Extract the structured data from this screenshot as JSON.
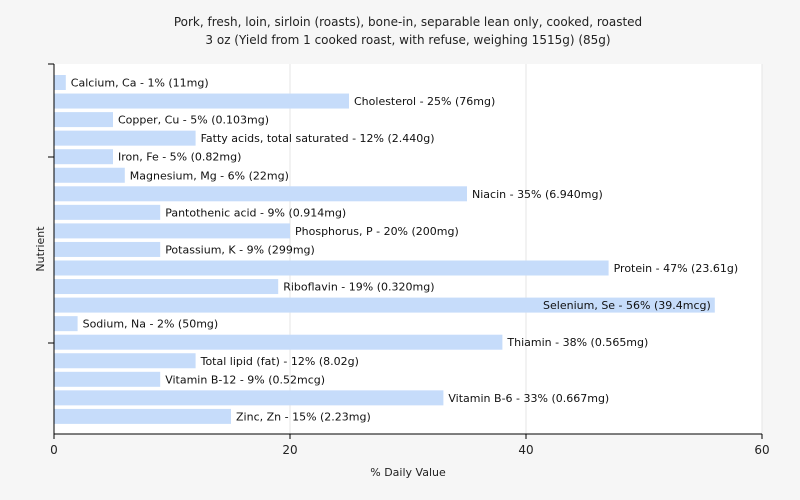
{
  "chart_data": {
    "type": "bar",
    "orientation": "horizontal",
    "title": "Pork, fresh, loin, sirloin (roasts), bone-in, separable lean only, cooked, roasted",
    "subtitle": "3 oz (Yield from 1 cooked roast, with refuse, weighing 1515g) (85g)",
    "xlabel": "% Daily Value",
    "ylabel": "Nutrient",
    "xlim": [
      0,
      60
    ],
    "xticks": [
      "0",
      "20",
      "40",
      "60"
    ],
    "grid": true,
    "bar_color": "#c6dcfa",
    "categories": [
      "Calcium, Ca",
      "Cholesterol",
      "Copper, Cu",
      "Fatty acids, total saturated",
      "Iron, Fe",
      "Magnesium, Mg",
      "Niacin",
      "Pantothenic acid",
      "Phosphorus, P",
      "Potassium, K",
      "Protein",
      "Riboflavin",
      "Selenium, Se",
      "Sodium, Na",
      "Thiamin",
      "Total lipid (fat)",
      "Vitamin B-12",
      "Vitamin B-6",
      "Zinc, Zn"
    ],
    "values": [
      1,
      25,
      5,
      12,
      5,
      6,
      35,
      9,
      20,
      9,
      47,
      19,
      56,
      2,
      38,
      12,
      9,
      33,
      15
    ],
    "labels": [
      "Calcium, Ca - 1% (11mg)",
      "Cholesterol - 25% (76mg)",
      "Copper, Cu - 5% (0.103mg)",
      "Fatty acids, total saturated - 12% (2.440g)",
      "Iron, Fe - 5% (0.82mg)",
      "Magnesium, Mg - 6% (22mg)",
      "Niacin - 35% (6.940mg)",
      "Pantothenic acid - 9% (0.914mg)",
      "Phosphorus, P - 20% (200mg)",
      "Potassium, K - 9% (299mg)",
      "Protein - 47% (23.61g)",
      "Riboflavin - 19% (0.320mg)",
      "Selenium, Se - 56% (39.4mcg)",
      "Sodium, Na - 2% (50mg)",
      "Thiamin - 38% (0.565mg)",
      "Total lipid (fat) - 12% (8.02g)",
      "Vitamin B-12 - 9% (0.52mcg)",
      "Vitamin B-6 - 33% (0.667mg)",
      "Zinc, Zn - 15% (2.23mg)"
    ]
  }
}
